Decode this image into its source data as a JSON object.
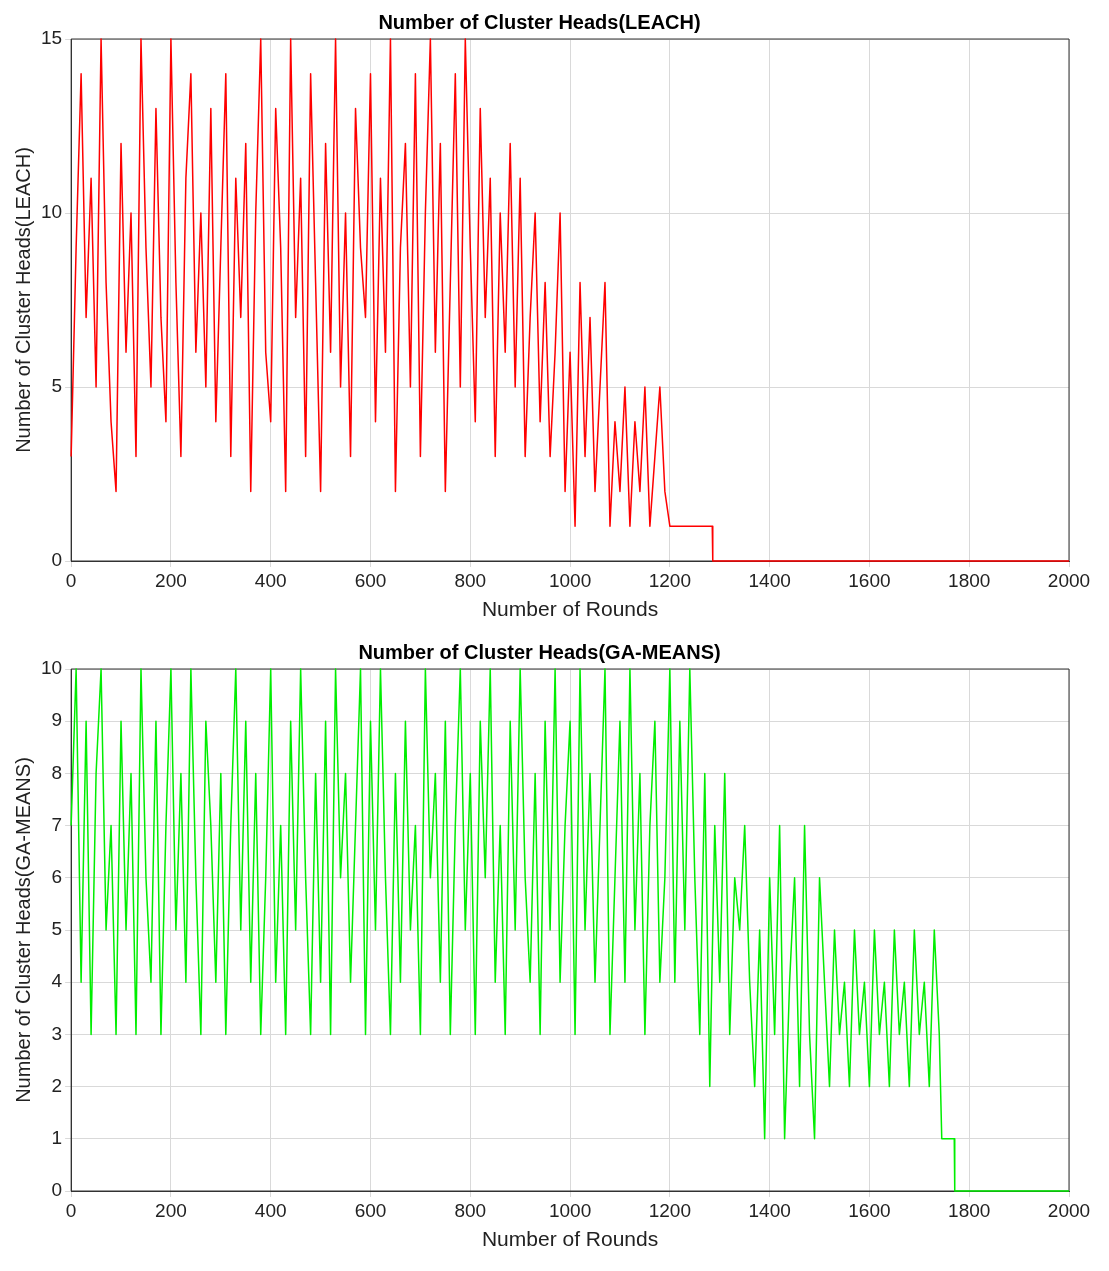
{
  "chart_data": [
    {
      "type": "line",
      "title": "Number of Cluster Heads(LEACH)",
      "xlabel": "Number of Rounds",
      "ylabel": "Number of Cluster Heads(LEACH)",
      "xlim": [
        0,
        2000
      ],
      "xticks": [
        0,
        200,
        400,
        600,
        800,
        1000,
        1200,
        1400,
        1600,
        1800,
        2000
      ],
      "ylim": [
        0,
        15
      ],
      "yticks": [
        0,
        5,
        10,
        15
      ],
      "grid": true,
      "series": [
        {
          "color": "#ff0000",
          "x": [
            0,
            10,
            20,
            30,
            40,
            50,
            60,
            70,
            80,
            90,
            100,
            110,
            120,
            130,
            140,
            150,
            160,
            170,
            180,
            190,
            200,
            210,
            220,
            230,
            240,
            250,
            260,
            270,
            280,
            290,
            300,
            310,
            320,
            330,
            340,
            350,
            360,
            370,
            380,
            390,
            400,
            410,
            420,
            430,
            440,
            450,
            460,
            470,
            480,
            490,
            500,
            510,
            520,
            530,
            540,
            550,
            560,
            570,
            580,
            590,
            600,
            610,
            620,
            630,
            640,
            650,
            660,
            670,
            680,
            690,
            700,
            710,
            720,
            730,
            740,
            750,
            760,
            770,
            780,
            790,
            800,
            810,
            820,
            830,
            840,
            850,
            860,
            870,
            880,
            890,
            900,
            910,
            920,
            930,
            940,
            950,
            960,
            970,
            980,
            990,
            1000,
            1010,
            1020,
            1030,
            1040,
            1050,
            1060,
            1070,
            1080,
            1090,
            1100,
            1110,
            1120,
            1130,
            1140,
            1150,
            1160,
            1170,
            1180,
            1190,
            1200,
            1285,
            1286,
            2000
          ],
          "values": [
            3,
            9,
            14,
            7,
            11,
            5,
            15,
            8,
            4,
            2,
            12,
            6,
            10,
            3,
            15,
            9,
            5,
            13,
            7,
            4,
            15,
            8,
            3,
            11,
            14,
            6,
            10,
            5,
            13,
            4,
            9,
            14,
            3,
            11,
            7,
            12,
            2,
            10,
            15,
            6,
            4,
            13,
            9,
            2,
            15,
            7,
            11,
            3,
            14,
            8,
            2,
            12,
            6,
            15,
            5,
            10,
            3,
            13,
            9,
            7,
            14,
            4,
            11,
            6,
            15,
            2,
            9,
            12,
            5,
            14,
            3,
            10,
            15,
            6,
            12,
            2,
            8,
            14,
            5,
            15,
            9,
            4,
            13,
            7,
            11,
            3,
            10,
            6,
            12,
            5,
            11,
            3,
            7,
            10,
            4,
            8,
            3,
            6,
            10,
            2,
            6,
            1,
            8,
            3,
            7,
            2,
            5,
            8,
            1,
            4,
            2,
            5,
            1,
            4,
            2,
            5,
            1,
            3,
            5,
            2,
            1,
            1,
            0,
            0
          ]
        }
      ]
    },
    {
      "type": "line",
      "title": "Number of Cluster Heads(GA-MEANS)",
      "xlabel": "Number of Rounds",
      "ylabel": "Number of Cluster Heads(GA-MEANS)",
      "xlim": [
        0,
        2000
      ],
      "xticks": [
        0,
        200,
        400,
        600,
        800,
        1000,
        1200,
        1400,
        1600,
        1800,
        2000
      ],
      "ylim": [
        0,
        10
      ],
      "yticks": [
        0,
        1,
        2,
        3,
        4,
        5,
        6,
        7,
        8,
        9,
        10
      ],
      "grid": true,
      "series": [
        {
          "color": "#00ee00",
          "x": [
            0,
            10,
            20,
            30,
            40,
            50,
            60,
            70,
            80,
            90,
            100,
            110,
            120,
            130,
            140,
            150,
            160,
            170,
            180,
            190,
            200,
            210,
            220,
            230,
            240,
            250,
            260,
            270,
            280,
            290,
            300,
            310,
            320,
            330,
            340,
            350,
            360,
            370,
            380,
            390,
            400,
            410,
            420,
            430,
            440,
            450,
            460,
            470,
            480,
            490,
            500,
            510,
            520,
            530,
            540,
            550,
            560,
            570,
            580,
            590,
            600,
            610,
            620,
            630,
            640,
            650,
            660,
            670,
            680,
            690,
            700,
            710,
            720,
            730,
            740,
            750,
            760,
            770,
            780,
            790,
            800,
            810,
            820,
            830,
            840,
            850,
            860,
            870,
            880,
            890,
            900,
            910,
            920,
            930,
            940,
            950,
            960,
            970,
            980,
            990,
            1000,
            1010,
            1020,
            1030,
            1040,
            1050,
            1060,
            1070,
            1080,
            1090,
            1100,
            1110,
            1120,
            1130,
            1140,
            1150,
            1160,
            1170,
            1180,
            1190,
            1200,
            1210,
            1220,
            1230,
            1240,
            1250,
            1260,
            1270,
            1280,
            1290,
            1300,
            1310,
            1320,
            1330,
            1340,
            1350,
            1360,
            1370,
            1380,
            1390,
            1400,
            1410,
            1420,
            1430,
            1440,
            1450,
            1460,
            1470,
            1480,
            1490,
            1500,
            1510,
            1520,
            1530,
            1540,
            1550,
            1560,
            1570,
            1580,
            1590,
            1600,
            1610,
            1620,
            1630,
            1640,
            1650,
            1660,
            1670,
            1680,
            1690,
            1700,
            1710,
            1720,
            1730,
            1740,
            1745,
            1770,
            1771,
            2000
          ],
          "values": [
            7,
            10,
            4,
            9,
            3,
            8,
            10,
            5,
            7,
            3,
            9,
            5,
            8,
            3,
            10,
            6,
            4,
            9,
            3,
            7,
            10,
            5,
            8,
            4,
            10,
            6,
            3,
            9,
            7,
            4,
            8,
            3,
            7,
            10,
            5,
            9,
            4,
            8,
            3,
            6,
            10,
            4,
            7,
            3,
            9,
            5,
            10,
            6,
            3,
            8,
            4,
            9,
            3,
            10,
            6,
            8,
            4,
            7,
            10,
            3,
            9,
            5,
            10,
            6,
            3,
            8,
            4,
            9,
            5,
            7,
            3,
            10,
            6,
            8,
            4,
            9,
            3,
            7,
            10,
            5,
            8,
            3,
            9,
            6,
            10,
            4,
            7,
            3,
            9,
            5,
            10,
            6,
            4,
            8,
            3,
            9,
            5,
            10,
            4,
            7,
            9,
            3,
            10,
            5,
            8,
            4,
            7,
            10,
            3,
            6,
            9,
            4,
            10,
            5,
            8,
            3,
            7,
            9,
            4,
            6,
            10,
            4,
            9,
            5,
            10,
            6,
            3,
            8,
            2,
            7,
            4,
            8,
            3,
            6,
            5,
            7,
            4,
            2,
            5,
            1,
            6,
            3,
            7,
            1,
            4,
            6,
            2,
            7,
            3,
            1,
            6,
            4,
            2,
            5,
            3,
            4,
            2,
            5,
            3,
            4,
            2,
            5,
            3,
            4,
            2,
            5,
            3,
            4,
            2,
            5,
            3,
            4,
            2,
            5,
            3,
            1,
            1,
            0,
            0
          ]
        }
      ]
    }
  ]
}
